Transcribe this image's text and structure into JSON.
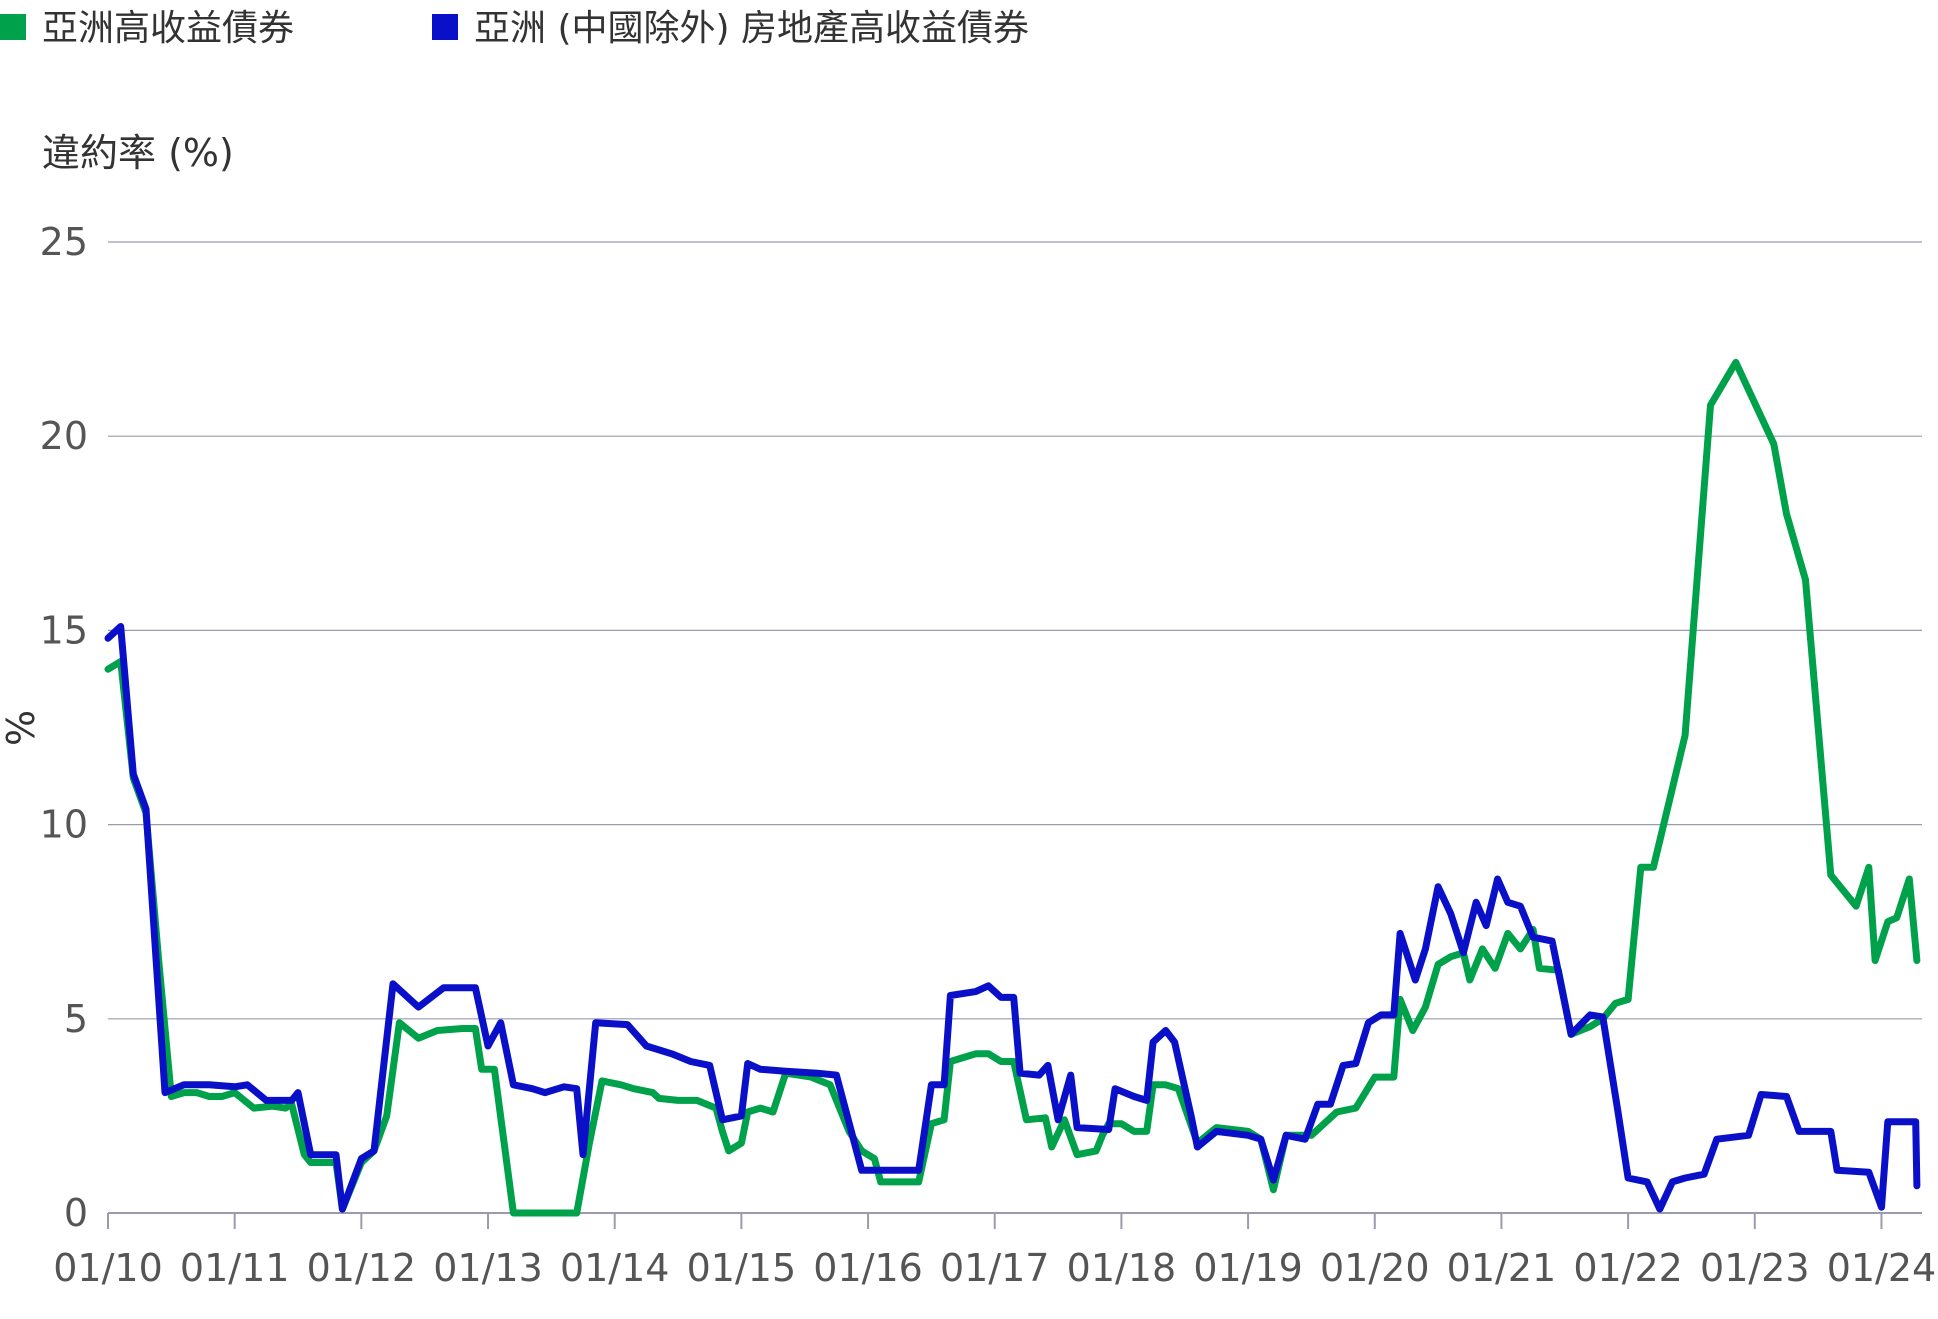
{
  "chart_data": {
    "type": "line",
    "title": "",
    "ylabel_top": "違約率 (%)",
    "ylabel_side": "%",
    "xlabel": "",
    "ylim": [
      0,
      25
    ],
    "yticks": [
      0,
      5,
      10,
      15,
      20,
      25
    ],
    "grid": true,
    "legend_placement": "top-left",
    "x_ticks": [
      "01/10",
      "01/11",
      "01/12",
      "01/13",
      "01/14",
      "01/15",
      "01/16",
      "01/17",
      "01/18",
      "01/19",
      "01/20",
      "01/21",
      "01/22",
      "01/23",
      "01/24"
    ],
    "series": [
      {
        "name": "亞洲高收益債券",
        "color": "#00a14b",
        "points": [
          [
            2010.0,
            14.0
          ],
          [
            2010.1,
            14.2
          ],
          [
            2010.2,
            11.2
          ],
          [
            2010.3,
            10.3
          ],
          [
            2010.4,
            6.5
          ],
          [
            2010.5,
            3.0
          ],
          [
            2010.6,
            3.1
          ],
          [
            2010.7,
            3.1
          ],
          [
            2010.8,
            3.0
          ],
          [
            2010.9,
            3.0
          ],
          [
            2011.0,
            3.1
          ],
          [
            2011.15,
            2.7
          ],
          [
            2011.3,
            2.75
          ],
          [
            2011.4,
            2.7
          ],
          [
            2011.45,
            2.8
          ],
          [
            2011.55,
            1.5
          ],
          [
            2011.6,
            1.3
          ],
          [
            2011.8,
            1.3
          ],
          [
            2011.85,
            0.1
          ],
          [
            2012.0,
            1.3
          ],
          [
            2012.1,
            1.6
          ],
          [
            2012.2,
            2.5
          ],
          [
            2012.3,
            4.9
          ],
          [
            2012.45,
            4.5
          ],
          [
            2012.6,
            4.7
          ],
          [
            2012.8,
            4.75
          ],
          [
            2012.9,
            4.75
          ],
          [
            2012.95,
            3.7
          ],
          [
            2013.05,
            3.7
          ],
          [
            2013.2,
            0.0
          ],
          [
            2013.4,
            0.0
          ],
          [
            2013.6,
            0.0
          ],
          [
            2013.7,
            0.0
          ],
          [
            2013.8,
            1.8
          ],
          [
            2013.9,
            3.4
          ],
          [
            2014.05,
            3.3
          ],
          [
            2014.15,
            3.2
          ],
          [
            2014.3,
            3.1
          ],
          [
            2014.35,
            2.95
          ],
          [
            2014.5,
            2.9
          ],
          [
            2014.65,
            2.9
          ],
          [
            2014.8,
            2.7
          ],
          [
            2014.85,
            2.1
          ],
          [
            2014.9,
            1.6
          ],
          [
            2015.0,
            1.8
          ],
          [
            2015.05,
            2.6
          ],
          [
            2015.15,
            2.7
          ],
          [
            2015.25,
            2.6
          ],
          [
            2015.35,
            3.6
          ],
          [
            2015.55,
            3.5
          ],
          [
            2015.7,
            3.3
          ],
          [
            2015.85,
            2.1
          ],
          [
            2015.95,
            1.6
          ],
          [
            2016.05,
            1.4
          ],
          [
            2016.1,
            0.8
          ],
          [
            2016.2,
            0.8
          ],
          [
            2016.4,
            0.8
          ],
          [
            2016.5,
            2.3
          ],
          [
            2016.6,
            2.4
          ],
          [
            2016.65,
            3.9
          ],
          [
            2016.75,
            4.0
          ],
          [
            2016.85,
            4.1
          ],
          [
            2016.95,
            4.1
          ],
          [
            2017.05,
            3.9
          ],
          [
            2017.15,
            3.9
          ],
          [
            2017.25,
            2.4
          ],
          [
            2017.4,
            2.45
          ],
          [
            2017.45,
            1.7
          ],
          [
            2017.55,
            2.4
          ],
          [
            2017.65,
            1.5
          ],
          [
            2017.8,
            1.6
          ],
          [
            2017.85,
            2.0
          ],
          [
            2017.9,
            2.3
          ],
          [
            2018.0,
            2.3
          ],
          [
            2018.1,
            2.1
          ],
          [
            2018.2,
            2.1
          ],
          [
            2018.25,
            3.3
          ],
          [
            2018.35,
            3.3
          ],
          [
            2018.45,
            3.2
          ],
          [
            2018.6,
            1.8
          ],
          [
            2018.75,
            2.2
          ],
          [
            2019.0,
            2.1
          ],
          [
            2019.1,
            1.9
          ],
          [
            2019.2,
            0.6
          ],
          [
            2019.3,
            2.0
          ],
          [
            2019.5,
            2.0
          ],
          [
            2019.7,
            2.6
          ],
          [
            2019.85,
            2.7
          ],
          [
            2020.0,
            3.5
          ],
          [
            2020.15,
            3.5
          ],
          [
            2020.2,
            5.5
          ],
          [
            2020.3,
            4.7
          ],
          [
            2020.4,
            5.3
          ],
          [
            2020.5,
            6.4
          ],
          [
            2020.6,
            6.6
          ],
          [
            2020.7,
            6.7
          ],
          [
            2020.75,
            6.0
          ],
          [
            2020.85,
            6.8
          ],
          [
            2020.95,
            6.3
          ],
          [
            2021.05,
            7.2
          ],
          [
            2021.15,
            6.8
          ],
          [
            2021.25,
            7.3
          ],
          [
            2021.3,
            6.3
          ],
          [
            2021.45,
            6.25
          ],
          [
            2021.55,
            4.6
          ],
          [
            2021.7,
            4.8
          ],
          [
            2021.8,
            5.0
          ],
          [
            2021.9,
            5.4
          ],
          [
            2022.0,
            5.5
          ],
          [
            2022.1,
            8.9
          ],
          [
            2022.2,
            8.9
          ],
          [
            2022.45,
            12.3
          ],
          [
            2022.65,
            20.8
          ],
          [
            2022.85,
            21.9
          ],
          [
            2023.15,
            19.8
          ],
          [
            2023.25,
            18.0
          ],
          [
            2023.4,
            16.3
          ],
          [
            2023.6,
            8.7
          ],
          [
            2023.8,
            7.9
          ],
          [
            2023.9,
            8.9
          ],
          [
            2023.95,
            6.5
          ],
          [
            2024.05,
            7.5
          ],
          [
            2024.12,
            7.6
          ],
          [
            2024.22,
            8.6
          ],
          [
            2024.28,
            6.5
          ]
        ]
      },
      {
        "name": "亞洲 (中國除外) 房地產高收益債券",
        "color": "#0a10c8",
        "points": [
          [
            2010.0,
            14.8
          ],
          [
            2010.1,
            15.1
          ],
          [
            2010.2,
            11.3
          ],
          [
            2010.3,
            10.4
          ],
          [
            2010.45,
            3.1
          ],
          [
            2010.6,
            3.3
          ],
          [
            2010.8,
            3.3
          ],
          [
            2011.0,
            3.25
          ],
          [
            2011.1,
            3.3
          ],
          [
            2011.25,
            2.9
          ],
          [
            2011.45,
            2.9
          ],
          [
            2011.5,
            3.1
          ],
          [
            2011.6,
            1.5
          ],
          [
            2011.8,
            1.5
          ],
          [
            2011.85,
            0.1
          ],
          [
            2012.0,
            1.4
          ],
          [
            2012.1,
            1.6
          ],
          [
            2012.25,
            5.9
          ],
          [
            2012.45,
            5.3
          ],
          [
            2012.65,
            5.8
          ],
          [
            2012.9,
            5.8
          ],
          [
            2013.0,
            4.3
          ],
          [
            2013.1,
            4.9
          ],
          [
            2013.2,
            3.3
          ],
          [
            2013.35,
            3.2
          ],
          [
            2013.45,
            3.1
          ],
          [
            2013.6,
            3.25
          ],
          [
            2013.7,
            3.2
          ],
          [
            2013.75,
            1.5
          ],
          [
            2013.85,
            4.9
          ],
          [
            2014.1,
            4.85
          ],
          [
            2014.25,
            4.3
          ],
          [
            2014.45,
            4.1
          ],
          [
            2014.6,
            3.9
          ],
          [
            2014.75,
            3.8
          ],
          [
            2014.85,
            2.4
          ],
          [
            2015.0,
            2.5
          ],
          [
            2015.05,
            3.85
          ],
          [
            2015.15,
            3.7
          ],
          [
            2015.35,
            3.65
          ],
          [
            2015.6,
            3.6
          ],
          [
            2015.75,
            3.55
          ],
          [
            2015.95,
            1.1
          ],
          [
            2016.15,
            1.1
          ],
          [
            2016.4,
            1.1
          ],
          [
            2016.5,
            3.3
          ],
          [
            2016.6,
            3.3
          ],
          [
            2016.65,
            5.6
          ],
          [
            2016.85,
            5.7
          ],
          [
            2016.95,
            5.85
          ],
          [
            2017.05,
            5.55
          ],
          [
            2017.15,
            5.55
          ],
          [
            2017.2,
            3.6
          ],
          [
            2017.35,
            3.55
          ],
          [
            2017.42,
            3.8
          ],
          [
            2017.5,
            2.4
          ],
          [
            2017.6,
            3.55
          ],
          [
            2017.65,
            2.2
          ],
          [
            2017.9,
            2.15
          ],
          [
            2017.95,
            3.2
          ],
          [
            2018.1,
            3.0
          ],
          [
            2018.2,
            2.9
          ],
          [
            2018.25,
            4.4
          ],
          [
            2018.35,
            4.7
          ],
          [
            2018.42,
            4.4
          ],
          [
            2018.55,
            2.5
          ],
          [
            2018.6,
            1.7
          ],
          [
            2018.75,
            2.1
          ],
          [
            2019.0,
            2.0
          ],
          [
            2019.1,
            1.9
          ],
          [
            2019.2,
            0.85
          ],
          [
            2019.3,
            2.0
          ],
          [
            2019.45,
            1.9
          ],
          [
            2019.55,
            2.8
          ],
          [
            2019.65,
            2.8
          ],
          [
            2019.75,
            3.8
          ],
          [
            2019.85,
            3.85
          ],
          [
            2019.95,
            4.9
          ],
          [
            2020.05,
            5.1
          ],
          [
            2020.15,
            5.1
          ],
          [
            2020.2,
            7.2
          ],
          [
            2020.32,
            6.0
          ],
          [
            2020.4,
            6.8
          ],
          [
            2020.5,
            8.4
          ],
          [
            2020.6,
            7.7
          ],
          [
            2020.7,
            6.7
          ],
          [
            2020.8,
            8.0
          ],
          [
            2020.88,
            7.4
          ],
          [
            2020.97,
            8.6
          ],
          [
            2021.05,
            8.0
          ],
          [
            2021.15,
            7.9
          ],
          [
            2021.25,
            7.1
          ],
          [
            2021.4,
            7.0
          ],
          [
            2021.55,
            4.6
          ],
          [
            2021.7,
            5.1
          ],
          [
            2021.8,
            5.05
          ],
          [
            2021.92,
            2.6
          ],
          [
            2022.0,
            0.9
          ],
          [
            2022.15,
            0.8
          ],
          [
            2022.25,
            0.1
          ],
          [
            2022.35,
            0.8
          ],
          [
            2022.45,
            0.9
          ],
          [
            2022.6,
            1.0
          ],
          [
            2022.7,
            1.9
          ],
          [
            2022.95,
            2.0
          ],
          [
            2023.05,
            3.05
          ],
          [
            2023.25,
            3.0
          ],
          [
            2023.35,
            2.1
          ],
          [
            2023.6,
            2.1
          ],
          [
            2023.65,
            1.1
          ],
          [
            2023.9,
            1.05
          ],
          [
            2024.0,
            0.15
          ],
          [
            2024.05,
            2.35
          ],
          [
            2024.15,
            2.35
          ],
          [
            2024.27,
            2.35
          ],
          [
            2024.28,
            0.7
          ]
        ]
      }
    ]
  }
}
